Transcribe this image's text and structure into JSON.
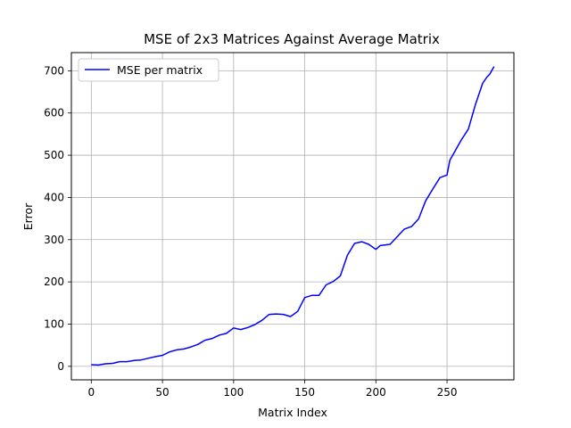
{
  "chart_data": {
    "type": "line",
    "title": "MSE of 2x3 Matrices Against Average Matrix",
    "xlabel": "Matrix Index",
    "ylabel": "Error",
    "xlim": [
      -14,
      297
    ],
    "ylim": [
      -32,
      743
    ],
    "xticks": [
      0,
      50,
      100,
      150,
      200,
      250
    ],
    "yticks": [
      0,
      100,
      200,
      300,
      400,
      500,
      600,
      700
    ],
    "grid": true,
    "legend": {
      "placement": "top-left"
    },
    "series": [
      {
        "name": "MSE per matrix",
        "color": "#0000ff",
        "points": [
          [
            0,
            4
          ],
          [
            5,
            3
          ],
          [
            10,
            6
          ],
          [
            15,
            7
          ],
          [
            20,
            11
          ],
          [
            25,
            11
          ],
          [
            30,
            14
          ],
          [
            35,
            15
          ],
          [
            40,
            19
          ],
          [
            45,
            23
          ],
          [
            50,
            26
          ],
          [
            55,
            34
          ],
          [
            60,
            39
          ],
          [
            65,
            41
          ],
          [
            70,
            46
          ],
          [
            75,
            52
          ],
          [
            80,
            62
          ],
          [
            85,
            66
          ],
          [
            90,
            74
          ],
          [
            95,
            78
          ],
          [
            100,
            91
          ],
          [
            105,
            87
          ],
          [
            110,
            92
          ],
          [
            115,
            99
          ],
          [
            120,
            109
          ],
          [
            125,
            123
          ],
          [
            130,
            124
          ],
          [
            135,
            123
          ],
          [
            140,
            118
          ],
          [
            145,
            130
          ],
          [
            150,
            163
          ],
          [
            155,
            168
          ],
          [
            160,
            168
          ],
          [
            165,
            193
          ],
          [
            170,
            201
          ],
          [
            175,
            214
          ],
          [
            180,
            263
          ],
          [
            185,
            291
          ],
          [
            190,
            295
          ],
          [
            195,
            289
          ],
          [
            200,
            277
          ],
          [
            203,
            286
          ],
          [
            210,
            289
          ],
          [
            215,
            307
          ],
          [
            220,
            325
          ],
          [
            225,
            331
          ],
          [
            230,
            349
          ],
          [
            235,
            392
          ],
          [
            240,
            420
          ],
          [
            245,
            447
          ],
          [
            250,
            453
          ],
          [
            252,
            488
          ],
          [
            255,
            506
          ],
          [
            260,
            536
          ],
          [
            265,
            562
          ],
          [
            270,
            620
          ],
          [
            275,
            670
          ],
          [
            278,
            685
          ],
          [
            280,
            692
          ],
          [
            283,
            710
          ]
        ]
      }
    ]
  }
}
